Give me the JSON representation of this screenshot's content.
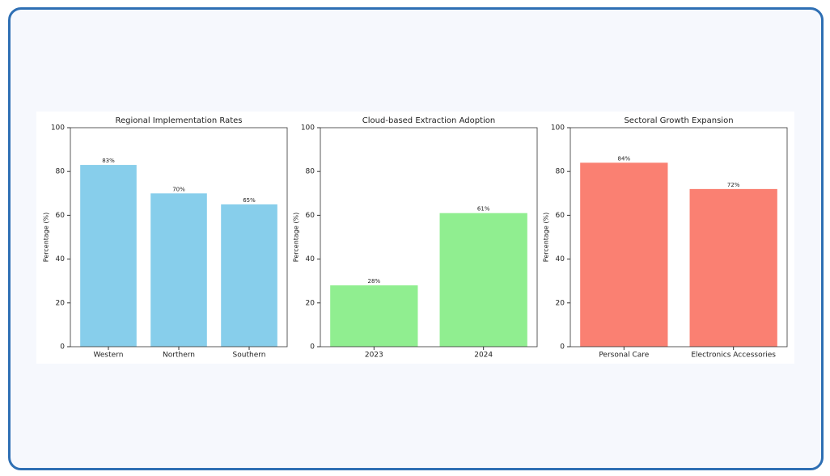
{
  "chart_data": [
    {
      "type": "bar",
      "title": "Regional Implementation Rates",
      "y_label": "Percentage (%)",
      "categories": [
        "Western",
        "Northern",
        "Southern"
      ],
      "values": [
        83,
        70,
        65
      ],
      "value_labels": [
        "83%",
        "70%",
        "65%"
      ],
      "color": "#87ceeb",
      "ylim": [
        0,
        100
      ],
      "yticks": [
        0,
        20,
        40,
        60,
        80,
        100
      ]
    },
    {
      "type": "bar",
      "title": "Cloud-based Extraction Adoption",
      "y_label": "Percentage (%)",
      "categories": [
        "2023",
        "2024"
      ],
      "values": [
        28,
        61
      ],
      "value_labels": [
        "28%",
        "61%"
      ],
      "color": "#90ee90",
      "ylim": [
        0,
        100
      ],
      "yticks": [
        0,
        20,
        40,
        60,
        80,
        100
      ]
    },
    {
      "type": "bar",
      "title": "Sectoral Growth Expansion",
      "y_label": "Percentage (%)",
      "categories": [
        "Personal Care",
        "Electronics Accessories"
      ],
      "values": [
        84,
        72
      ],
      "value_labels": [
        "84%",
        "72%"
      ],
      "color": "#fa8072",
      "ylim": [
        0,
        100
      ],
      "yticks": [
        0,
        20,
        40,
        60,
        80,
        100
      ]
    }
  ]
}
